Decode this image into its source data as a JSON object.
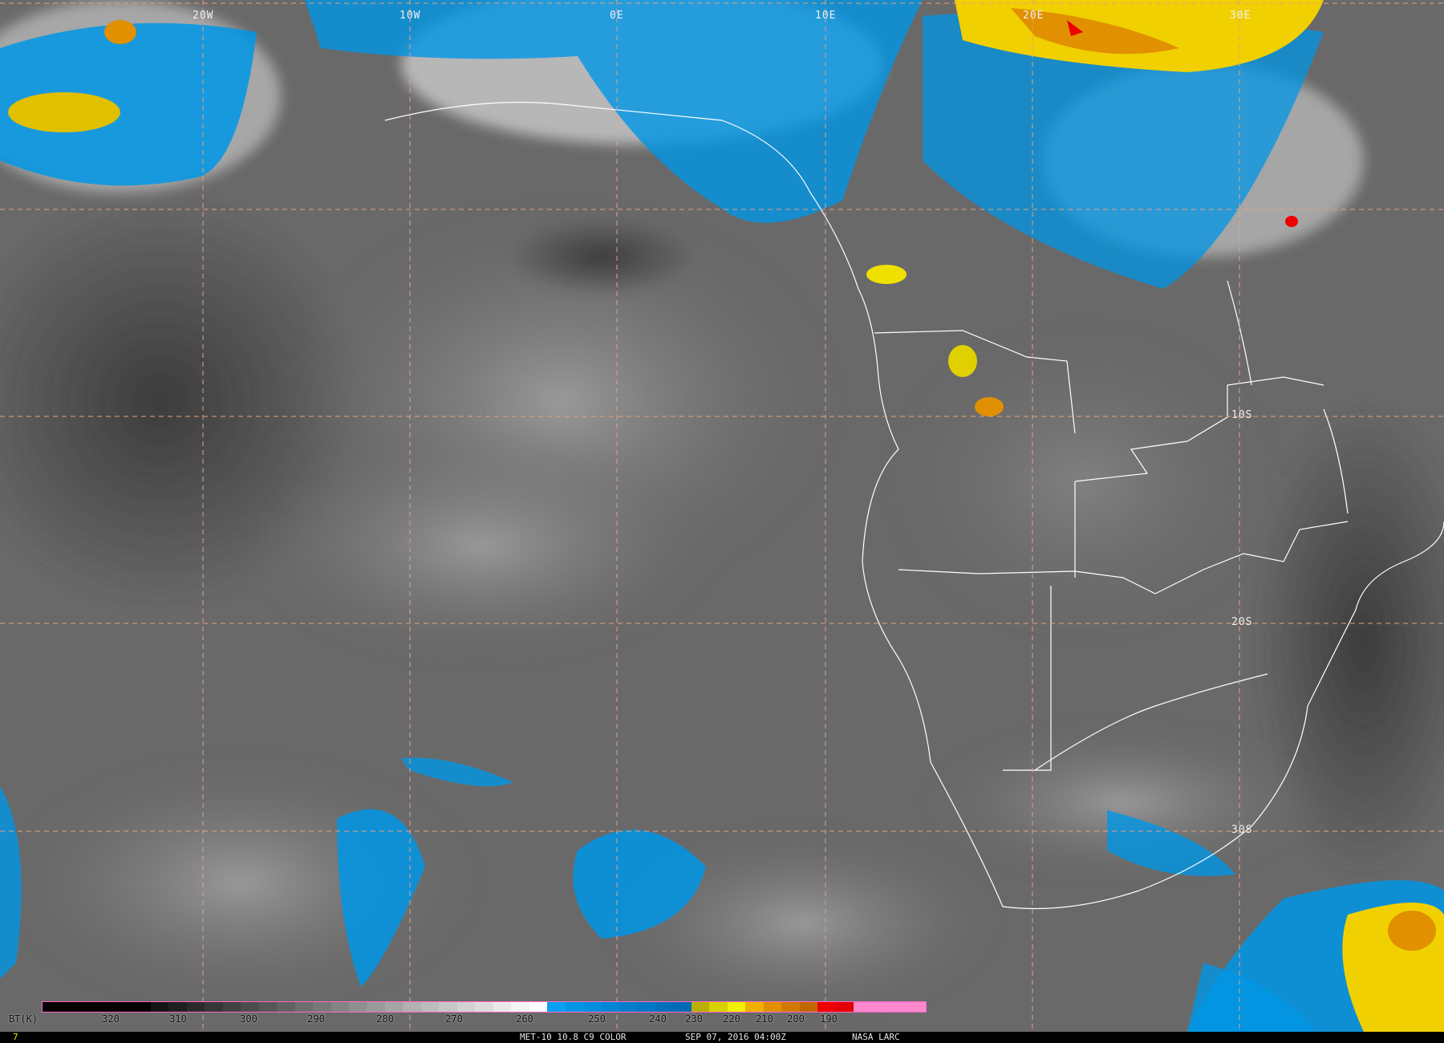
{
  "map": {
    "longitude_labels": [
      "20W",
      "10W",
      "0E",
      "10E",
      "20E",
      "30E"
    ],
    "latitude_labels": [
      "10S",
      "20S",
      "30S"
    ]
  },
  "colorbar": {
    "unit_label": "BT(K)",
    "ticks": [
      "320",
      "310",
      "300",
      "290",
      "280",
      "270",
      "260",
      "250",
      "240",
      "230",
      "220",
      "210",
      "200",
      "190"
    ],
    "colors": {
      "warm": "#000000",
      "neutral": "#ffffff",
      "cold_blue": "#0096e6",
      "yellow": "#f0f000",
      "orange": "#e09000",
      "red": "#ee0000",
      "pink": "#ff88cc"
    }
  },
  "footer": {
    "frame_number": "7",
    "product": "MET-10 10.8 C9 COLOR",
    "datetime": "SEP 07, 2016 04:00Z",
    "credit": "NASA LARC"
  }
}
